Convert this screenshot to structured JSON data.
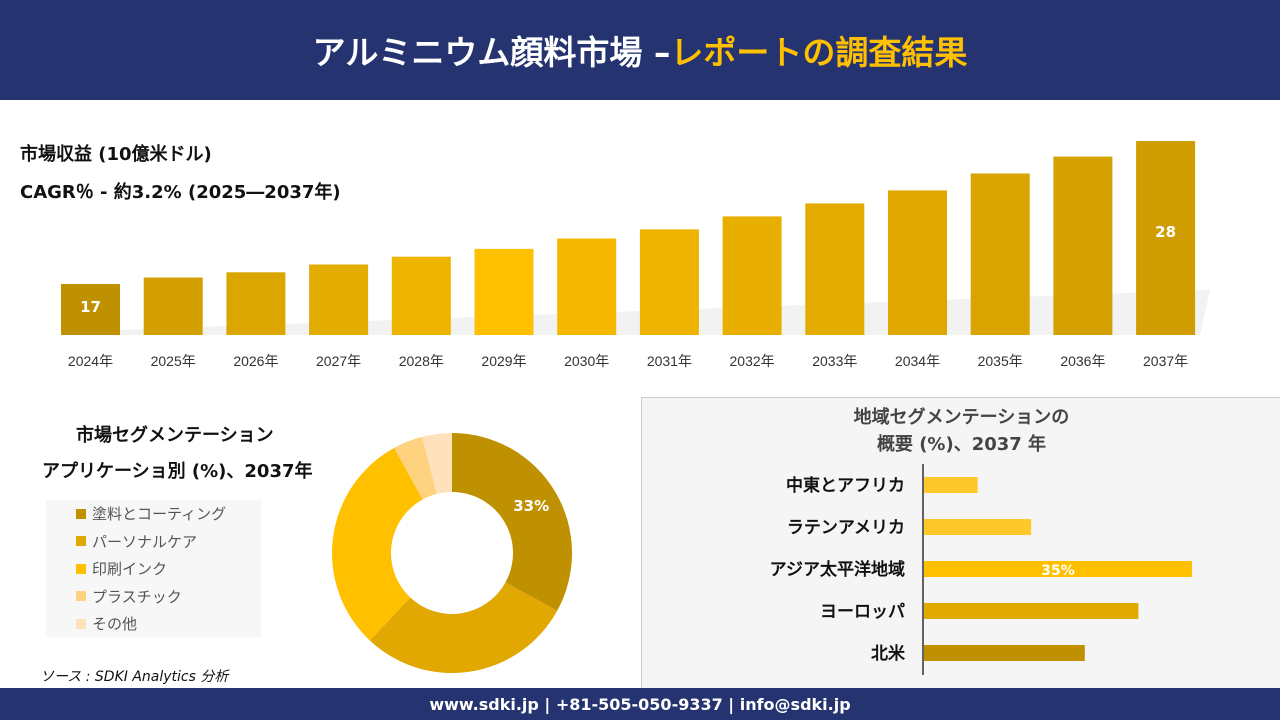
{
  "header": {
    "title_white": "アルミニウム顔料市場 –",
    "title_yellow": "レポートの調査結果"
  },
  "revenue": {
    "label": "市場収益 (10億米ドル)",
    "cagr": "CAGR％ - 約3.2% (2025―2037年)"
  },
  "chart_data": [
    {
      "type": "bar",
      "categories": [
        "2024年",
        "2025年",
        "2026年",
        "2027年",
        "2028年",
        "2029年",
        "2030年",
        "2031年",
        "2032年",
        "2033年",
        "2034年",
        "2035年",
        "2036年",
        "2037年"
      ],
      "values": [
        17,
        17.5,
        17.9,
        18.5,
        19.1,
        19.7,
        20.5,
        21.2,
        22.2,
        23.2,
        24.2,
        25.5,
        26.8,
        28
      ],
      "data_labels": {
        "0": "17",
        "13": "28"
      },
      "ylabel": "市場収益 (10億米ドル)"
    },
    {
      "type": "pie",
      "title": "市場セグメンテーション アプリケーショ別 (%)、2037年",
      "labels": [
        "塗料とコーティング",
        "パーソナルケア",
        "印刷インク",
        "プラスチック",
        "その他"
      ],
      "values": [
        33,
        29,
        30,
        4,
        4
      ],
      "colors": [
        "#BF9000",
        "#E0A800",
        "#FFC000",
        "#FFD280",
        "#FFE2BC"
      ],
      "data_labels": {
        "0": "33%"
      },
      "legend": "left"
    },
    {
      "type": "bar",
      "orientation": "horizontal",
      "title_line1": "地域セグメンテーションの",
      "title_line2": "概要 (%)、2037 年",
      "categories": [
        "中東とアフリカ",
        "ラテンアメリカ",
        "アジア太平洋地域",
        "ヨーロッパ",
        "北米"
      ],
      "values": [
        7,
        14,
        35,
        28,
        21
      ],
      "colors": [
        "#FFC82A",
        "#FFC82A",
        "#FFC000",
        "#E0AA00",
        "#BF9000"
      ],
      "data_labels": {
        "2": "35%"
      }
    }
  ],
  "segment": {
    "title1": "市場セグメンテーション",
    "title2": "アプリケーショ別 (%)、2037年"
  },
  "source": "ソース : SDKI Analytics 分析",
  "footer": "www.sdki.jp | +81-505-050-9337 | info@sdki.jp"
}
